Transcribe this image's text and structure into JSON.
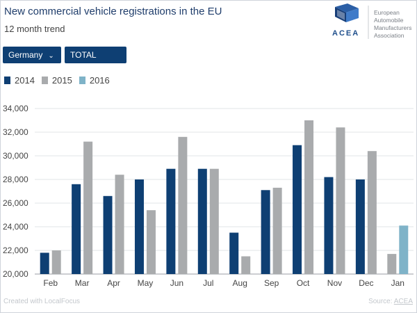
{
  "header": {
    "title": "New commercial vehicle registrations in the EU",
    "subtitle": "12 month trend"
  },
  "logo": {
    "wordmark": "ACEA",
    "org_line1": "European",
    "org_line2": "Automobile",
    "org_line3": "Manufacturers",
    "org_line4": "Association"
  },
  "filters": {
    "country": "Germany",
    "vehicle_type": "TOTAL CV"
  },
  "footer": {
    "credit": "Created with LocalFocus",
    "source_label": "Source:",
    "source_link": "ACEA"
  },
  "colors": {
    "s2014": "#0e3f73",
    "s2015": "#a9abad",
    "s2016": "#7fb3c8"
  },
  "chart_data": {
    "type": "bar",
    "title": "New commercial vehicle registrations in the EU",
    "subtitle": "12 month trend",
    "xlabel": "",
    "ylabel": "",
    "categories": [
      "Feb",
      "Mar",
      "Apr",
      "May",
      "Jun",
      "Jul",
      "Aug",
      "Sep",
      "Oct",
      "Nov",
      "Dec",
      "Jan"
    ],
    "ylim": [
      20000,
      34000
    ],
    "yticks": [
      20000,
      22000,
      24000,
      26000,
      28000,
      30000,
      32000,
      34000
    ],
    "ytick_labels": [
      "20,000",
      "22,000",
      "24,000",
      "26,000",
      "28,000",
      "30,000",
      "32,000",
      "34,000"
    ],
    "grid": true,
    "legend": "top-left",
    "series": [
      {
        "name": "2014",
        "values": [
          21800,
          27600,
          26600,
          28000,
          28900,
          28900,
          23500,
          27100,
          30900,
          28200,
          28000,
          null
        ]
      },
      {
        "name": "2015",
        "values": [
          22000,
          31200,
          28400,
          25400,
          31600,
          28900,
          21500,
          27300,
          33000,
          32400,
          30400,
          21700
        ]
      },
      {
        "name": "2016",
        "values": [
          null,
          null,
          null,
          null,
          null,
          null,
          null,
          null,
          null,
          null,
          null,
          24100
        ]
      }
    ]
  }
}
